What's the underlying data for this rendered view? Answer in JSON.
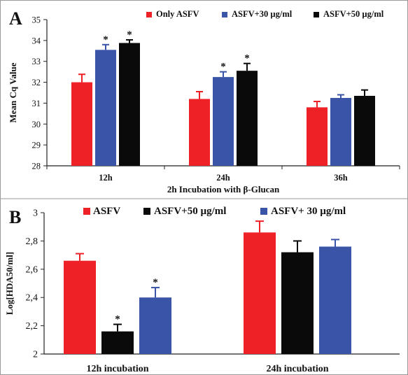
{
  "chart_data": [
    {
      "type": "bar",
      "panel_label": "A",
      "title": "",
      "xlabel": "2h Incubation with β-Glucan",
      "ylabel": "Mean Cq Value",
      "ylim": [
        28,
        35
      ],
      "yticks": [
        28,
        29,
        30,
        31,
        32,
        33,
        34,
        35
      ],
      "ytick_labels": [
        "28",
        "29",
        "30",
        "31",
        "32",
        "33",
        "34",
        "35"
      ],
      "categories": [
        "12h",
        "24h",
        "36h"
      ],
      "legend_position": "top",
      "series": [
        {
          "name": "Only ASFV",
          "color": "#ee2126",
          "values": [
            32.0,
            31.2,
            30.8
          ],
          "errors": [
            0.38,
            0.35,
            0.28
          ],
          "sig": [
            "",
            "",
            ""
          ]
        },
        {
          "name": "ASFV+30 µg/ml",
          "color": "#3a55a8",
          "values": [
            33.55,
            32.25,
            31.25
          ],
          "errors": [
            0.25,
            0.25,
            0.15
          ],
          "sig": [
            "*",
            "*",
            ""
          ]
        },
        {
          "name": "ASFV+50 µg/ml",
          "color": "#0a0a0a",
          "values": [
            33.88,
            32.55,
            31.35
          ],
          "errors": [
            0.15,
            0.35,
            0.28
          ],
          "sig": [
            "*",
            "*",
            ""
          ]
        }
      ]
    },
    {
      "type": "bar",
      "panel_label": "B",
      "title": "",
      "xlabel": "",
      "ylabel": "Log[HDA50/ml]",
      "ylim": [
        2,
        3
      ],
      "yticks": [
        2,
        2.2,
        2.4,
        2.6,
        2.8,
        3
      ],
      "ytick_labels": [
        "2",
        "2,2",
        "2,4",
        "2,6",
        "2,8",
        "3"
      ],
      "categories": [
        "12h incubation",
        "24h incubation"
      ],
      "legend_position": "top",
      "series": [
        {
          "name": "ASFV",
          "color": "#ee2126",
          "values": [
            2.66,
            2.86
          ],
          "errors": [
            0.05,
            0.08
          ],
          "sig": [
            "",
            ""
          ]
        },
        {
          "name": "ASFV+50 µg/ml",
          "color": "#0a0a0a",
          "values": [
            2.16,
            2.72
          ],
          "errors": [
            0.05,
            0.08
          ],
          "sig": [
            "*",
            ""
          ]
        },
        {
          "name": "ASFV+ 30 µg/ml",
          "color": "#3a55a8",
          "values": [
            2.4,
            2.76
          ],
          "errors": [
            0.07,
            0.05
          ],
          "sig": [
            "*",
            ""
          ]
        }
      ]
    }
  ]
}
